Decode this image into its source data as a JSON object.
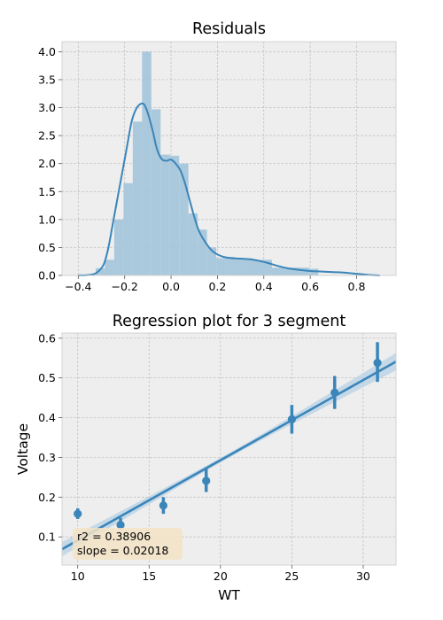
{
  "chart_data": [
    {
      "type": "histogram+kde",
      "title": "Residuals",
      "xlabel": "",
      "ylabel": "",
      "xlim": [
        -0.47,
        0.97
      ],
      "ylim": [
        0,
        4.18
      ],
      "grid": true,
      "x_ticks": [
        -0.4,
        -0.2,
        0.0,
        0.2,
        0.4,
        0.6,
        0.8
      ],
      "x_tick_labels": [
        "−0.4",
        "−0.2",
        "0.0",
        "0.2",
        "0.4",
        "0.6",
        "0.8"
      ],
      "y_ticks": [
        0.0,
        0.5,
        1.0,
        1.5,
        2.0,
        2.5,
        3.0,
        3.5,
        4.0
      ],
      "y_tick_labels": [
        "0.0",
        "0.5",
        "1.0",
        "1.5",
        "2.0",
        "2.5",
        "3.0",
        "3.5",
        "4.0"
      ],
      "bins": {
        "edges": [
          -0.325,
          -0.285,
          -0.245,
          -0.205,
          -0.165,
          -0.125,
          -0.085,
          -0.045,
          -0.005,
          0.035,
          0.075,
          0.115,
          0.155,
          0.195,
          0.235,
          0.275,
          0.315,
          0.355,
          0.395,
          0.435,
          0.475,
          0.515,
          0.555,
          0.595,
          0.635,
          0.675
        ],
        "heights": [
          0.13,
          0.28,
          1.0,
          1.65,
          2.75,
          4.0,
          2.97,
          2.16,
          2.14,
          2.0,
          1.11,
          0.82,
          0.5,
          0.31,
          0.33,
          0.3,
          0.28,
          0.28,
          0.28,
          0.14,
          0.14,
          0.14,
          0.14,
          0.12,
          0.0
        ]
      },
      "kde": {
        "x": [
          -0.4,
          -0.35,
          -0.32,
          -0.29,
          -0.27,
          -0.25,
          -0.23,
          -0.21,
          -0.19,
          -0.17,
          -0.15,
          -0.13,
          -0.115,
          -0.1,
          -0.08,
          -0.06,
          -0.04,
          -0.02,
          0.0,
          0.02,
          0.04,
          0.06,
          0.08,
          0.1,
          0.12,
          0.15,
          0.18,
          0.22,
          0.26,
          0.3,
          0.34,
          0.38,
          0.42,
          0.46,
          0.5,
          0.55,
          0.6,
          0.65,
          0.7,
          0.75,
          0.8,
          0.85,
          0.9
        ],
        "y": [
          0.0,
          0.01,
          0.05,
          0.2,
          0.5,
          0.95,
          1.4,
          1.85,
          2.3,
          2.75,
          2.98,
          3.07,
          3.05,
          2.9,
          2.6,
          2.25,
          2.08,
          2.05,
          2.07,
          2.0,
          1.88,
          1.65,
          1.35,
          1.05,
          0.8,
          0.58,
          0.43,
          0.34,
          0.31,
          0.3,
          0.29,
          0.26,
          0.22,
          0.17,
          0.13,
          0.1,
          0.08,
          0.07,
          0.06,
          0.05,
          0.03,
          0.01,
          0.0
        ]
      }
    },
    {
      "type": "scatter+regression",
      "title": "Regression plot for 3 segment",
      "xlabel": "WT",
      "ylabel": "Voltage",
      "xlim": [
        8.9,
        32.3
      ],
      "ylim": [
        0.029,
        0.613
      ],
      "grid": true,
      "x_ticks": [
        10,
        15,
        20,
        25,
        30
      ],
      "x_tick_labels": [
        "10",
        "15",
        "20",
        "25",
        "30"
      ],
      "y_ticks": [
        0.1,
        0.2,
        0.3,
        0.4,
        0.5,
        0.6
      ],
      "y_tick_labels": [
        "0.1",
        "0.2",
        "0.3",
        "0.4",
        "0.5",
        "0.6"
      ],
      "points": [
        {
          "x": 10,
          "y": 0.158,
          "err_low": 0.145,
          "err_high": 0.172
        },
        {
          "x": 13,
          "y": 0.13,
          "err_low": 0.118,
          "err_high": 0.148
        },
        {
          "x": 16,
          "y": 0.179,
          "err_low": 0.158,
          "err_high": 0.2
        },
        {
          "x": 19,
          "y": 0.241,
          "err_low": 0.213,
          "err_high": 0.272
        },
        {
          "x": 25,
          "y": 0.396,
          "err_low": 0.36,
          "err_high": 0.432
        },
        {
          "x": 28,
          "y": 0.463,
          "err_low": 0.422,
          "err_high": 0.505
        },
        {
          "x": 31,
          "y": 0.538,
          "err_low": 0.49,
          "err_high": 0.59
        }
      ],
      "regression": {
        "x_start": 8.9,
        "y_start": 0.069,
        "x_end": 32.3,
        "y_end": 0.541,
        "ci_halfwidth_start": 0.018,
        "ci_halfwidth_mid": 0.006,
        "ci_halfwidth_end": 0.022
      },
      "annotation": [
        "r2 = 0.38906",
        "slope = 0.02018"
      ],
      "colors": {
        "point": "#3a85b9",
        "line": "#3a85b9",
        "ci_band": "#b4cfe4",
        "annotation_box": "#f3e3c6"
      }
    }
  ],
  "style": {
    "hist_fill": "#a7c6db",
    "kde_line": "#3a85b9",
    "axes_bg": "#eeeeee",
    "grid": "#b8b8b8",
    "spine": "#d3d3d3",
    "text": "#000000"
  }
}
